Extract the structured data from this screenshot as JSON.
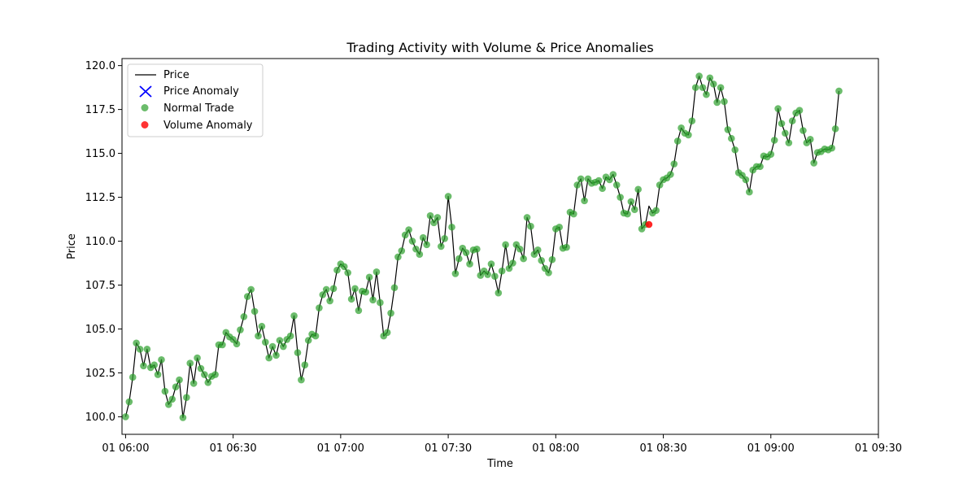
{
  "chart_data": {
    "type": "line",
    "title": "Trading Activity with Volume & Price Anomalies",
    "xlabel": "Time",
    "ylabel": "Price",
    "x_start": "01 06:00",
    "x_step_minutes": 1,
    "x_ticks": [
      "01 06:00",
      "01 06:30",
      "01 07:00",
      "01 07:30",
      "01 08:00",
      "01 08:30",
      "01 09:00",
      "01 09:30"
    ],
    "y_ticks": [
      "100.0",
      "102.5",
      "105.0",
      "107.5",
      "110.0",
      "112.5",
      "115.0",
      "117.5",
      "120.0"
    ],
    "xlim": [
      "01 05:59",
      "01 09:30"
    ],
    "ylim": [
      99.0,
      120.4
    ],
    "grid": false,
    "legend": {
      "placement": "upper left",
      "entries": [
        "Price",
        "Price Anomaly",
        "Normal Trade",
        "Volume Anomaly"
      ]
    },
    "colors": {
      "price_line": "#000000",
      "price_anomaly": "#0000ff",
      "normal_trade": "#2ca02c",
      "volume_anomaly": "#ff0000"
    },
    "series": [
      {
        "name": "Price",
        "values": [
          100.0,
          100.85,
          102.25,
          104.2,
          103.85,
          102.9,
          103.85,
          102.8,
          102.95,
          102.4,
          103.25,
          101.45,
          100.7,
          101.0,
          101.7,
          102.1,
          99.95,
          101.1,
          103.05,
          101.9,
          103.35,
          102.75,
          102.4,
          101.95,
          102.3,
          102.4,
          104.1,
          104.1,
          104.8,
          104.55,
          104.4,
          104.15,
          104.95,
          105.7,
          106.85,
          107.25,
          106.0,
          104.6,
          105.15,
          104.25,
          103.35,
          104.0,
          103.5,
          104.35,
          104.0,
          104.4,
          104.6,
          105.75,
          103.65,
          102.1,
          102.95,
          104.35,
          104.7,
          104.6,
          106.2,
          106.95,
          107.25,
          106.6,
          107.3,
          108.35,
          108.7,
          108.55,
          108.2,
          106.7,
          107.3,
          106.05,
          107.15,
          107.1,
          107.95,
          106.65,
          108.25,
          106.5,
          104.6,
          104.8,
          105.9,
          107.35,
          109.1,
          109.45,
          110.35,
          110.65,
          110.0,
          109.55,
          109.25,
          110.2,
          109.8,
          111.45,
          111.05,
          111.35,
          109.7,
          110.15,
          112.55,
          110.8,
          108.15,
          109.0,
          109.6,
          109.35,
          108.7,
          109.5,
          109.55,
          108.05,
          108.3,
          108.1,
          108.7,
          108.0,
          107.05,
          108.3,
          109.8,
          108.45,
          108.75,
          109.8,
          109.55,
          109.0,
          111.35,
          110.85,
          109.25,
          109.5,
          108.9,
          108.45,
          108.2,
          108.95,
          110.7,
          110.8,
          109.6,
          109.65,
          111.65,
          111.55,
          113.2,
          113.55,
          112.3,
          113.55,
          113.3,
          113.35,
          113.45,
          113.0,
          113.65,
          113.5,
          113.8,
          113.2,
          112.5,
          111.6,
          111.55,
          112.25,
          111.8,
          112.95,
          110.7,
          110.95,
          112.0,
          111.6,
          111.75,
          113.2,
          113.5,
          113.6,
          113.8,
          114.4,
          115.7,
          116.45,
          116.15,
          116.05,
          116.85,
          118.75,
          119.4,
          118.75,
          118.35,
          119.3,
          118.95,
          117.9,
          118.75,
          117.95,
          116.35,
          115.85,
          115.2,
          113.9,
          113.75,
          113.5,
          112.8,
          114.05,
          114.25,
          114.25,
          114.85,
          114.8,
          114.95,
          115.75,
          117.55,
          116.7,
          116.15,
          115.6,
          116.85,
          117.3,
          117.45,
          116.3,
          115.6,
          115.8,
          114.45,
          115.05,
          115.1,
          115.25,
          115.2,
          115.3,
          116.4,
          118.55
        ]
      }
    ],
    "volume_anomalies": [
      {
        "minute": 146,
        "value": 110.95
      }
    ],
    "price_anomalies": []
  }
}
